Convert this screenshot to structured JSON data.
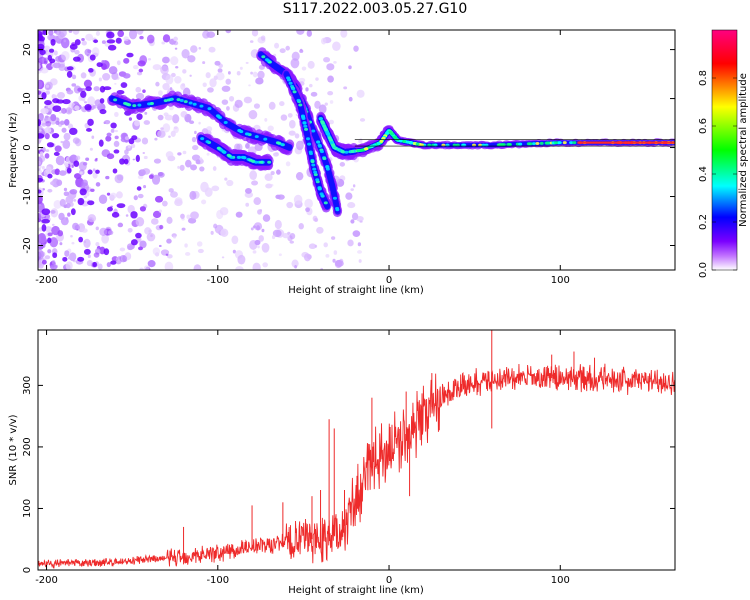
{
  "figure": {
    "title": "S117.2022.003.05.27.G10"
  },
  "chart_data": [
    {
      "type": "heatmap",
      "xlabel": "Height of straight line (km)",
      "ylabel": "Frequency (Hz)",
      "xlim": [
        -205,
        167
      ],
      "ylim": [
        -25,
        24
      ],
      "xticks": [
        -200,
        -100,
        0,
        100
      ],
      "yticks": [
        -20,
        -10,
        0,
        10,
        20
      ],
      "colorbar": {
        "label": "Normalized spectral amplitude",
        "range": [
          0,
          1
        ],
        "ticks": [
          "0.0",
          "0.2",
          "0.4",
          "0.6",
          "0.8"
        ],
        "colors": [
          "#ffffff",
          "#9b00ff",
          "#0000ff",
          "#00ffff",
          "#00ff00",
          "#ffff00",
          "#ff0000",
          "#ff0080"
        ]
      },
      "ridges": [
        {
          "name": "",
          "points": [
            [
              -162,
              10
            ],
            [
              -150,
              8.5
            ],
            [
              -138,
              9
            ],
            [
              -125,
              10
            ],
            [
              -115,
              9
            ],
            [
              -105,
              8
            ],
            [
              -95,
              5
            ],
            [
              -85,
              3
            ],
            [
              -75,
              2
            ],
            [
              -65,
              1
            ],
            [
              -58,
              0
            ]
          ]
        },
        {
          "name": "",
          "points": [
            [
              -110,
              2
            ],
            [
              -100,
              0
            ],
            [
              -92,
              -2
            ],
            [
              -85,
              -2
            ],
            [
              -78,
              -3
            ],
            [
              -70,
              -3
            ]
          ]
        },
        {
          "name": "",
          "points": [
            [
              -75,
              19
            ],
            [
              -68,
              17
            ],
            [
              -60,
              15
            ],
            [
              -54,
              12
            ],
            [
              -49,
              8
            ],
            [
              -45,
              4
            ],
            [
              -40,
              0
            ],
            [
              -36,
              -4
            ],
            [
              -33,
              -8
            ],
            [
              -30,
              -13
            ]
          ]
        },
        {
          "name": "",
          "points": [
            [
              -60,
              15
            ],
            [
              -52,
              9
            ],
            [
              -48,
              3
            ],
            [
              -44,
              -4
            ],
            [
              -40,
              -9
            ],
            [
              -36,
              -12
            ]
          ]
        },
        {
          "name": "",
          "points": [
            [
              -40,
              6
            ],
            [
              -36,
              3
            ],
            [
              -32,
              0
            ],
            [
              -26,
              -1
            ],
            [
              -15,
              -0.5
            ],
            [
              -5,
              1
            ],
            [
              0,
              3.5
            ],
            [
              5,
              1.5
            ],
            [
              20,
              0.5
            ],
            [
              60,
              0.5
            ],
            [
              100,
              1
            ],
            [
              167,
              1
            ]
          ]
        }
      ]
    },
    {
      "type": "line",
      "xlabel": "Height of straight line (km)",
      "ylabel": "SNR (10 * v/v)",
      "xlim": [
        -205,
        167
      ],
      "ylim": [
        0,
        390
      ],
      "xticks": [
        -200,
        -100,
        0,
        100
      ],
      "yticks": [
        0,
        100,
        200,
        300
      ],
      "color": "#ee2a2a",
      "envelope": [
        {
          "x": -205,
          "y": 10
        },
        {
          "x": -180,
          "y": 11
        },
        {
          "x": -160,
          "y": 13
        },
        {
          "x": -140,
          "y": 17
        },
        {
          "x": -120,
          "y": 22
        },
        {
          "x": -100,
          "y": 28
        },
        {
          "x": -80,
          "y": 38
        },
        {
          "x": -60,
          "y": 45
        },
        {
          "x": -45,
          "y": 50
        },
        {
          "x": -35,
          "y": 55
        },
        {
          "x": -28,
          "y": 60
        },
        {
          "x": -22,
          "y": 95
        },
        {
          "x": -15,
          "y": 140
        },
        {
          "x": -8,
          "y": 175
        },
        {
          "x": 0,
          "y": 200
        },
        {
          "x": 10,
          "y": 220
        },
        {
          "x": 20,
          "y": 250
        },
        {
          "x": 30,
          "y": 280
        },
        {
          "x": 45,
          "y": 300
        },
        {
          "x": 60,
          "y": 310
        },
        {
          "x": 80,
          "y": 312
        },
        {
          "x": 100,
          "y": 312
        },
        {
          "x": 120,
          "y": 311
        },
        {
          "x": 145,
          "y": 308
        },
        {
          "x": 167,
          "y": 305
        }
      ],
      "spikes": [
        {
          "x": -120,
          "y": 70
        },
        {
          "x": -80,
          "y": 105
        },
        {
          "x": -62,
          "y": 110
        },
        {
          "x": -45,
          "y": 120
        },
        {
          "x": -40,
          "y": 130
        },
        {
          "x": -35,
          "y": 245
        },
        {
          "x": -32,
          "y": 230
        },
        {
          "x": -26,
          "y": 130
        },
        {
          "x": -10,
          "y": 280
        },
        {
          "x": 10,
          "y": 290
        },
        {
          "x": 12,
          "y": 120
        },
        {
          "x": 25,
          "y": 320
        },
        {
          "x": 60,
          "y": 390
        },
        {
          "x": 60,
          "y": 230
        },
        {
          "x": 95,
          "y": 350
        },
        {
          "x": 108,
          "y": 355
        },
        {
          "x": 120,
          "y": 345
        }
      ]
    }
  ]
}
